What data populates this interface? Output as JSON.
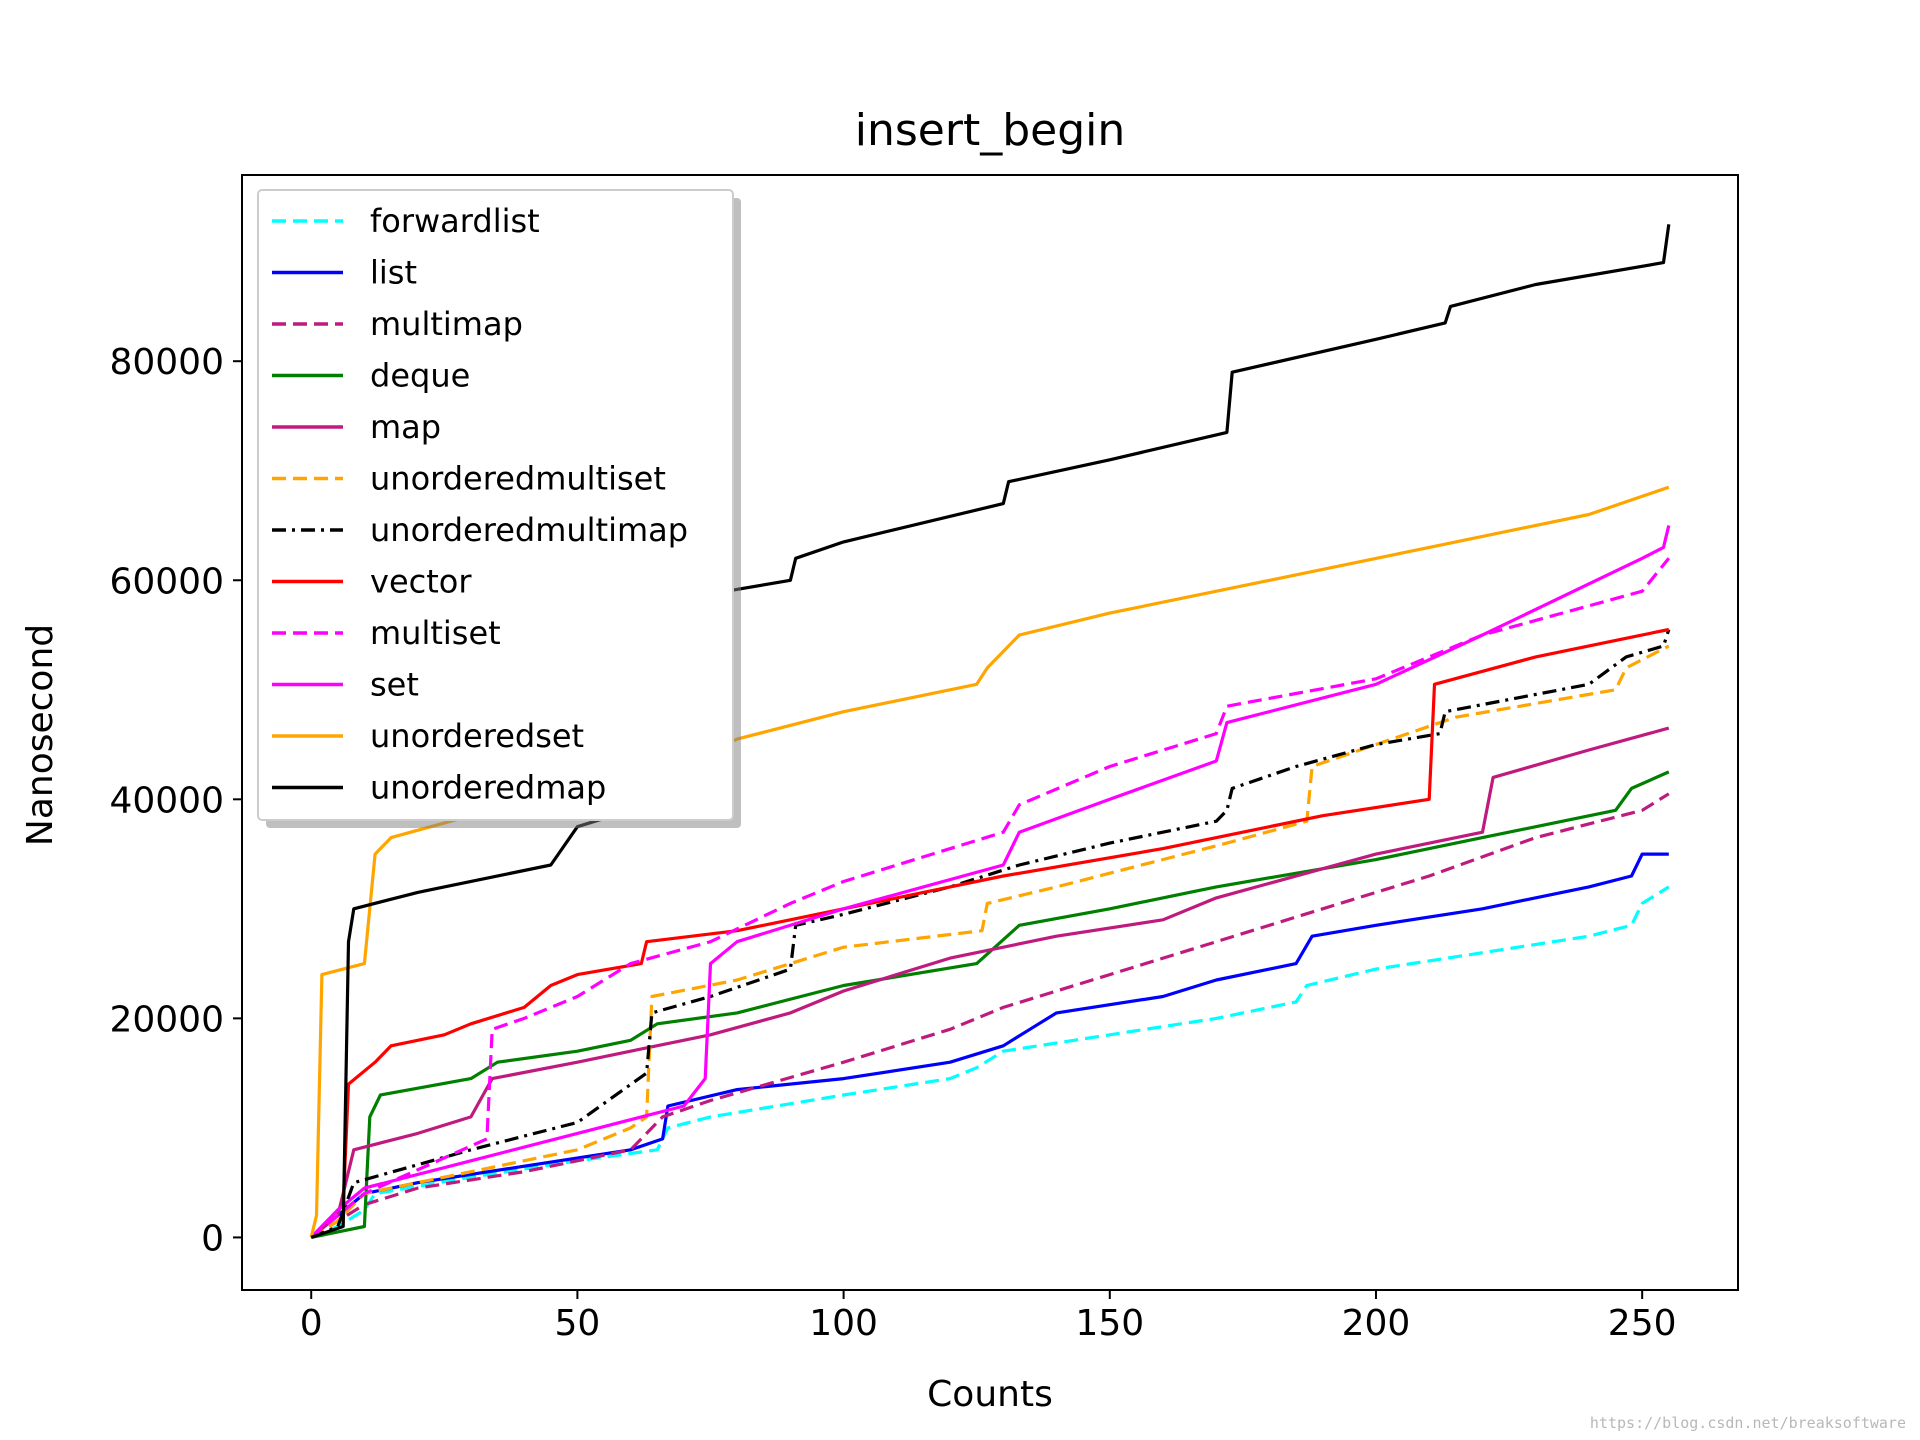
{
  "chart_data": {
    "type": "line",
    "title": "insert_begin",
    "xlabel": "Counts",
    "ylabel": "Nanosecond",
    "xlim": [
      -13,
      268
    ],
    "ylim": [
      -4800,
      97000
    ],
    "xticks": [
      0,
      50,
      100,
      150,
      200,
      250
    ],
    "yticks": [
      0,
      20000,
      40000,
      60000,
      80000
    ],
    "xtick_labels": [
      "0",
      "50",
      "100",
      "150",
      "200",
      "250"
    ],
    "ytick_labels": [
      "0",
      "20000",
      "40000",
      "60000",
      "80000"
    ],
    "grid": false,
    "legend_position": "upper left",
    "series": [
      {
        "name": "forwardlist",
        "color": "#00ffff",
        "dash": "dashed",
        "points": [
          [
            0,
            0
          ],
          [
            5,
            1000
          ],
          [
            10,
            2500
          ],
          [
            12,
            4000
          ],
          [
            30,
            5500
          ],
          [
            50,
            7000
          ],
          [
            65,
            8000
          ],
          [
            67,
            10000
          ],
          [
            75,
            11000
          ],
          [
            100,
            13000
          ],
          [
            120,
            14500
          ],
          [
            125,
            15500
          ],
          [
            130,
            17000
          ],
          [
            150,
            18500
          ],
          [
            170,
            20000
          ],
          [
            185,
            21500
          ],
          [
            187,
            23000
          ],
          [
            200,
            24500
          ],
          [
            220,
            26000
          ],
          [
            240,
            27500
          ],
          [
            248,
            28500
          ],
          [
            250,
            30500
          ],
          [
            255,
            32000
          ]
        ]
      },
      {
        "name": "list",
        "color": "#0000ff",
        "dash": "solid",
        "points": [
          [
            0,
            0
          ],
          [
            5,
            2000
          ],
          [
            10,
            4000
          ],
          [
            20,
            5000
          ],
          [
            40,
            6500
          ],
          [
            60,
            8000
          ],
          [
            66,
            9000
          ],
          [
            67,
            12000
          ],
          [
            80,
            13500
          ],
          [
            100,
            14500
          ],
          [
            120,
            16000
          ],
          [
            130,
            17500
          ],
          [
            135,
            19000
          ],
          [
            140,
            20500
          ],
          [
            160,
            22000
          ],
          [
            170,
            23500
          ],
          [
            185,
            25000
          ],
          [
            188,
            27500
          ],
          [
            200,
            28500
          ],
          [
            220,
            30000
          ],
          [
            240,
            32000
          ],
          [
            248,
            33000
          ],
          [
            250,
            35000
          ],
          [
            255,
            35000
          ]
        ]
      },
      {
        "name": "multimap",
        "color": "#bf1b7f",
        "dash": "dashed",
        "points": [
          [
            0,
            0
          ],
          [
            5,
            1500
          ],
          [
            10,
            3000
          ],
          [
            20,
            4500
          ],
          [
            40,
            6000
          ],
          [
            60,
            8000
          ],
          [
            66,
            11000
          ],
          [
            75,
            12500
          ],
          [
            100,
            16000
          ],
          [
            120,
            19000
          ],
          [
            130,
            21000
          ],
          [
            150,
            24000
          ],
          [
            170,
            27000
          ],
          [
            190,
            30000
          ],
          [
            210,
            33000
          ],
          [
            230,
            36500
          ],
          [
            250,
            39000
          ],
          [
            255,
            40500
          ]
        ]
      },
      {
        "name": "deque",
        "color": "#007f00",
        "dash": "solid",
        "points": [
          [
            0,
            0
          ],
          [
            5,
            500
          ],
          [
            10,
            1000
          ],
          [
            11,
            11000
          ],
          [
            13,
            13000
          ],
          [
            30,
            14500
          ],
          [
            35,
            16000
          ],
          [
            50,
            17000
          ],
          [
            60,
            18000
          ],
          [
            65,
            19500
          ],
          [
            80,
            20500
          ],
          [
            100,
            23000
          ],
          [
            125,
            25000
          ],
          [
            133,
            28500
          ],
          [
            150,
            30000
          ],
          [
            170,
            32000
          ],
          [
            200,
            34500
          ],
          [
            220,
            36500
          ],
          [
            245,
            39000
          ],
          [
            248,
            41000
          ],
          [
            255,
            42500
          ]
        ]
      },
      {
        "name": "map",
        "color": "#bf1b7f",
        "dash": "solid",
        "points": [
          [
            0,
            0
          ],
          [
            5,
            2000
          ],
          [
            8,
            8000
          ],
          [
            20,
            9500
          ],
          [
            30,
            11000
          ],
          [
            34,
            14500
          ],
          [
            50,
            16000
          ],
          [
            60,
            17000
          ],
          [
            75,
            18500
          ],
          [
            90,
            20500
          ],
          [
            100,
            22500
          ],
          [
            120,
            25500
          ],
          [
            140,
            27500
          ],
          [
            160,
            29000
          ],
          [
            170,
            31000
          ],
          [
            200,
            35000
          ],
          [
            220,
            37000
          ],
          [
            222,
            42000
          ],
          [
            240,
            44500
          ],
          [
            255,
            46500
          ]
        ]
      },
      {
        "name": "unorderedmultiset",
        "color": "#ffa500",
        "dash": "dashed",
        "points": [
          [
            0,
            0
          ],
          [
            5,
            1500
          ],
          [
            10,
            4000
          ],
          [
            30,
            6000
          ],
          [
            50,
            8000
          ],
          [
            60,
            10000
          ],
          [
            63,
            11000
          ],
          [
            64,
            22000
          ],
          [
            80,
            23500
          ],
          [
            90,
            25000
          ],
          [
            100,
            26500
          ],
          [
            126,
            28000
          ],
          [
            127,
            30500
          ],
          [
            140,
            32000
          ],
          [
            172,
            36000
          ],
          [
            187,
            38000
          ],
          [
            188,
            43000
          ],
          [
            200,
            45000
          ],
          [
            215,
            47500
          ],
          [
            245,
            50000
          ],
          [
            247,
            52000
          ],
          [
            255,
            54000
          ]
        ]
      },
      {
        "name": "unorderedmultimap",
        "color": "#000000",
        "dash": "dashdot",
        "points": [
          [
            0,
            0
          ],
          [
            5,
            1000
          ],
          [
            8,
            5000
          ],
          [
            30,
            8000
          ],
          [
            50,
            10500
          ],
          [
            63,
            15000
          ],
          [
            64,
            20500
          ],
          [
            75,
            22000
          ],
          [
            90,
            24500
          ],
          [
            91,
            28500
          ],
          [
            100,
            29500
          ],
          [
            120,
            32000
          ],
          [
            133,
            34000
          ],
          [
            150,
            36000
          ],
          [
            170,
            38000
          ],
          [
            172,
            39000
          ],
          [
            173,
            41000
          ],
          [
            185,
            43000
          ],
          [
            200,
            45000
          ],
          [
            212,
            46000
          ],
          [
            213,
            48000
          ],
          [
            240,
            50500
          ],
          [
            247,
            53000
          ],
          [
            254,
            54000
          ],
          [
            255,
            55500
          ]
        ]
      },
      {
        "name": "vector",
        "color": "#ff0000",
        "dash": "solid",
        "points": [
          [
            0,
            0
          ],
          [
            3,
            1500
          ],
          [
            6,
            3000
          ],
          [
            7,
            14000
          ],
          [
            12,
            16000
          ],
          [
            15,
            17500
          ],
          [
            25,
            18500
          ],
          [
            30,
            19500
          ],
          [
            40,
            21000
          ],
          [
            45,
            23000
          ],
          [
            50,
            24000
          ],
          [
            62,
            25000
          ],
          [
            63,
            27000
          ],
          [
            80,
            28000
          ],
          [
            100,
            30000
          ],
          [
            130,
            33000
          ],
          [
            160,
            35500
          ],
          [
            190,
            38500
          ],
          [
            210,
            40000
          ],
          [
            211,
            50500
          ],
          [
            230,
            53000
          ],
          [
            255,
            55500
          ]
        ]
      },
      {
        "name": "multiset",
        "color": "#ff00ff",
        "dash": "dashed",
        "points": [
          [
            0,
            0
          ],
          [
            5,
            2000
          ],
          [
            10,
            4000
          ],
          [
            33,
            9000
          ],
          [
            34,
            19000
          ],
          [
            40,
            20000
          ],
          [
            50,
            22000
          ],
          [
            60,
            25000
          ],
          [
            75,
            27000
          ],
          [
            90,
            30500
          ],
          [
            100,
            32500
          ],
          [
            130,
            37000
          ],
          [
            133,
            39500
          ],
          [
            150,
            43000
          ],
          [
            170,
            46000
          ],
          [
            172,
            48500
          ],
          [
            200,
            51000
          ],
          [
            220,
            55000
          ],
          [
            250,
            59000
          ],
          [
            255,
            62000
          ]
        ]
      },
      {
        "name": "set",
        "color": "#ff00ff",
        "dash": "solid",
        "points": [
          [
            0,
            0
          ],
          [
            5,
            2500
          ],
          [
            10,
            4500
          ],
          [
            30,
            7000
          ],
          [
            50,
            9500
          ],
          [
            70,
            12000
          ],
          [
            74,
            14500
          ],
          [
            75,
            25000
          ],
          [
            80,
            27000
          ],
          [
            100,
            30000
          ],
          [
            130,
            34000
          ],
          [
            133,
            37000
          ],
          [
            150,
            40000
          ],
          [
            170,
            43500
          ],
          [
            172,
            47000
          ],
          [
            200,
            50500
          ],
          [
            220,
            55000
          ],
          [
            250,
            62000
          ],
          [
            254,
            63000
          ],
          [
            255,
            65000
          ]
        ]
      },
      {
        "name": "unorderedset",
        "color": "#ffa500",
        "dash": "solid",
        "points": [
          [
            0,
            0
          ],
          [
            1,
            2000
          ],
          [
            2,
            24000
          ],
          [
            10,
            25000
          ],
          [
            12,
            35000
          ],
          [
            15,
            36500
          ],
          [
            30,
            38500
          ],
          [
            45,
            40500
          ],
          [
            70,
            43500
          ],
          [
            80,
            45500
          ],
          [
            100,
            48000
          ],
          [
            125,
            50500
          ],
          [
            127,
            52000
          ],
          [
            133,
            55000
          ],
          [
            150,
            57000
          ],
          [
            180,
            60000
          ],
          [
            210,
            63000
          ],
          [
            240,
            66000
          ],
          [
            255,
            68500
          ]
        ]
      },
      {
        "name": "unorderedmap",
        "color": "#000000",
        "dash": "solid",
        "points": [
          [
            0,
            0
          ],
          [
            6,
            1000
          ],
          [
            7,
            27000
          ],
          [
            8,
            30000
          ],
          [
            20,
            31500
          ],
          [
            45,
            34000
          ],
          [
            50,
            37500
          ],
          [
            60,
            39000
          ],
          [
            65,
            41500
          ],
          [
            70,
            53000
          ],
          [
            78,
            59000
          ],
          [
            90,
            60000
          ],
          [
            91,
            62000
          ],
          [
            100,
            63500
          ],
          [
            130,
            67000
          ],
          [
            131,
            69000
          ],
          [
            150,
            71000
          ],
          [
            172,
            73500
          ],
          [
            173,
            79000
          ],
          [
            200,
            82000
          ],
          [
            213,
            83500
          ],
          [
            214,
            85000
          ],
          [
            230,
            87000
          ],
          [
            254,
            89000
          ],
          [
            255,
            92500
          ]
        ]
      }
    ]
  },
  "watermark": "https://blog.csdn.net/breaksoftware"
}
